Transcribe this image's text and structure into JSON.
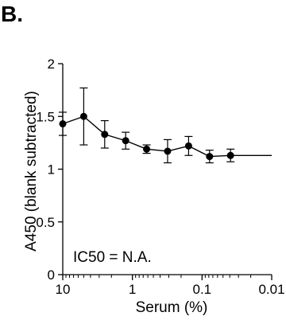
{
  "panel_label": "B.",
  "chart_data": {
    "type": "line",
    "xlabel": "Serum (%)",
    "ylabel": "A450 (blank subtracted)",
    "x_scale": "log",
    "x_reversed": true,
    "xlim": [
      10,
      0.01
    ],
    "ylim": [
      0,
      2
    ],
    "x_ticks": [
      10,
      1,
      0.1,
      0.01
    ],
    "x_tick_labels": [
      "10",
      "1",
      "0.1",
      "0.01"
    ],
    "y_ticks": [
      0,
      0.5,
      1,
      1.5,
      2
    ],
    "y_tick_labels": [
      "0",
      "0.5",
      "1",
      "1.5",
      "2"
    ],
    "grid": false,
    "annotation": "IC50 = N.A.",
    "series": [
      {
        "x": [
          10,
          5,
          2.5,
          1.25,
          0.625,
          0.3125,
          0.156,
          0.078,
          0.039
        ],
        "y": [
          1.43,
          1.5,
          1.33,
          1.27,
          1.19,
          1.17,
          1.22,
          1.12,
          1.13
        ],
        "err": [
          0.11,
          0.27,
          0.13,
          0.08,
          0.04,
          0.11,
          0.09,
          0.06,
          0.06
        ]
      }
    ],
    "fit_line": {
      "x": [
        0.039,
        0.01
      ],
      "y": [
        1.13,
        1.13
      ]
    }
  }
}
